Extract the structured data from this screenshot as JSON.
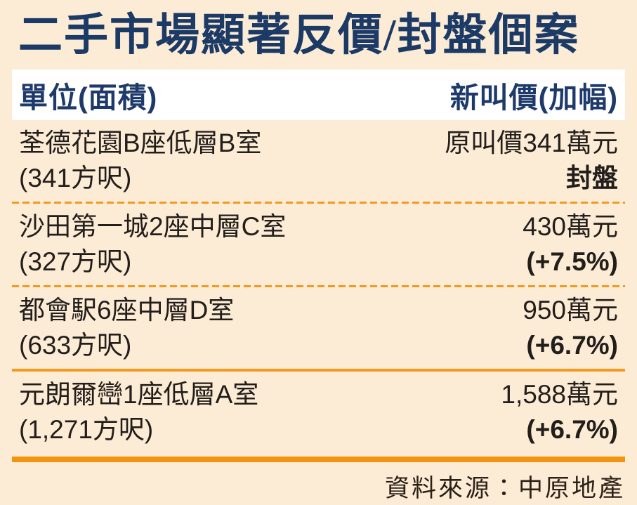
{
  "title": "二手市場顯著反價/封盤個案",
  "header": {
    "unit_column": "單位(面積)",
    "price_column": "新叫價(加幅)"
  },
  "table": {
    "rows": [
      {
        "unit": "荃德花園B座低層B室",
        "area": "(341方呎)",
        "price": "原叫價341萬元",
        "change": "封盤"
      },
      {
        "unit": "沙田第一城2座中層C室",
        "area": "(327方呎)",
        "price": "430萬元",
        "change": "(+7.5%)"
      },
      {
        "unit": "都會駅6座中層D室",
        "area": "(633方呎)",
        "price": "950萬元",
        "change": "(+6.7%)"
      },
      {
        "unit": "元朗爾巒1座低層A室",
        "area": "(1,271方呎)",
        "price": "1,588萬元",
        "change": "(+6.7%)"
      }
    ]
  },
  "footer": {
    "source": "資料來源：中原地產"
  },
  "colors": {
    "background": "#fcebd5",
    "title_navy": "#1c3a66",
    "separator_orange": "#f49a1e",
    "body_text": "#221e1b",
    "header_background": "#ffffff"
  },
  "chart_data": {
    "type": "table",
    "title": "二手市場顯著反價/封盤個案",
    "columns": [
      "單位(面積)",
      "新叫價(加幅)"
    ],
    "rows": [
      [
        "荃德花園B座低層B室 (341方呎)",
        "原叫價341萬元 封盤"
      ],
      [
        "沙田第一城2座中層C室 (327方呎)",
        "430萬元 (+7.5%)"
      ],
      [
        "都會駅6座中層D室 (633方呎)",
        "950萬元 (+6.7%)"
      ],
      [
        "元朗爾巒1座低層A室 (1,271方呎)",
        "1,588萬元 (+6.7%)"
      ]
    ],
    "source": "資料來源：中原地產"
  }
}
